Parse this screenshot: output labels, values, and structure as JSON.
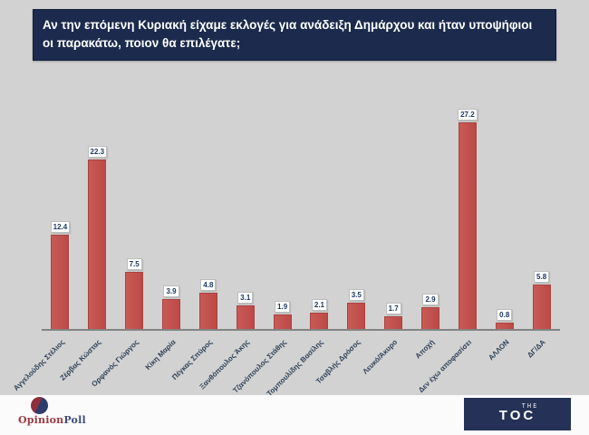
{
  "header": {
    "question": "Αν την επόμενη Κυριακή είχαμε εκλογές για ανάδειξη Δημάρχου και ήταν υποψήφιοι οι παρακάτω, ποιον θα επιλέγατε;"
  },
  "chart_data": {
    "type": "bar",
    "categories": [
      "Αγγελούδης Στέλιος",
      "Ζέρβας Κώστας",
      "Ορφανός Γιώργος",
      "Κίκη Μαρία",
      "Πέγκας Σπύρος",
      "Ξανθόπουλος Άκης",
      "Τζανόπουλος Στάθης",
      "Τομπουλίδης Βασίλης",
      "Τσαβλής Δρόσος",
      "Λευκό/Άκυρο",
      "Αποχή",
      "Δεν έχω αποφασίσει",
      "ΑΛΛΟΝ",
      "ΔΓ/ΔΑ"
    ],
    "values": [
      12.4,
      22.3,
      7.5,
      3.9,
      4.8,
      3.1,
      1.9,
      2.1,
      3.5,
      1.7,
      2.9,
      27.2,
      0.8,
      5.8
    ],
    "title": "",
    "xlabel": "",
    "ylabel": "",
    "ylim": [
      0,
      30
    ],
    "grid": false,
    "legend": false,
    "bar_color": "#c0504d",
    "value_labels_boxed": true,
    "category_label_rotation_deg": -45
  },
  "footer": {
    "opinionpoll": {
      "part1": "Opinion",
      "part2": "Poll"
    },
    "toc": {
      "line1": "THE",
      "line2": "TOC"
    }
  },
  "colors": {
    "background": "#d2d2d2",
    "header_bg": "#1c2b4d",
    "header_text": "#ffffff",
    "bar": "#c0504d",
    "value_label_text": "#1f3864",
    "axis_line": "#838383",
    "toc_logo_bg": "#253156",
    "opinionpoll_red": "#9e3a43",
    "opinionpoll_blue": "#3c4d79"
  }
}
